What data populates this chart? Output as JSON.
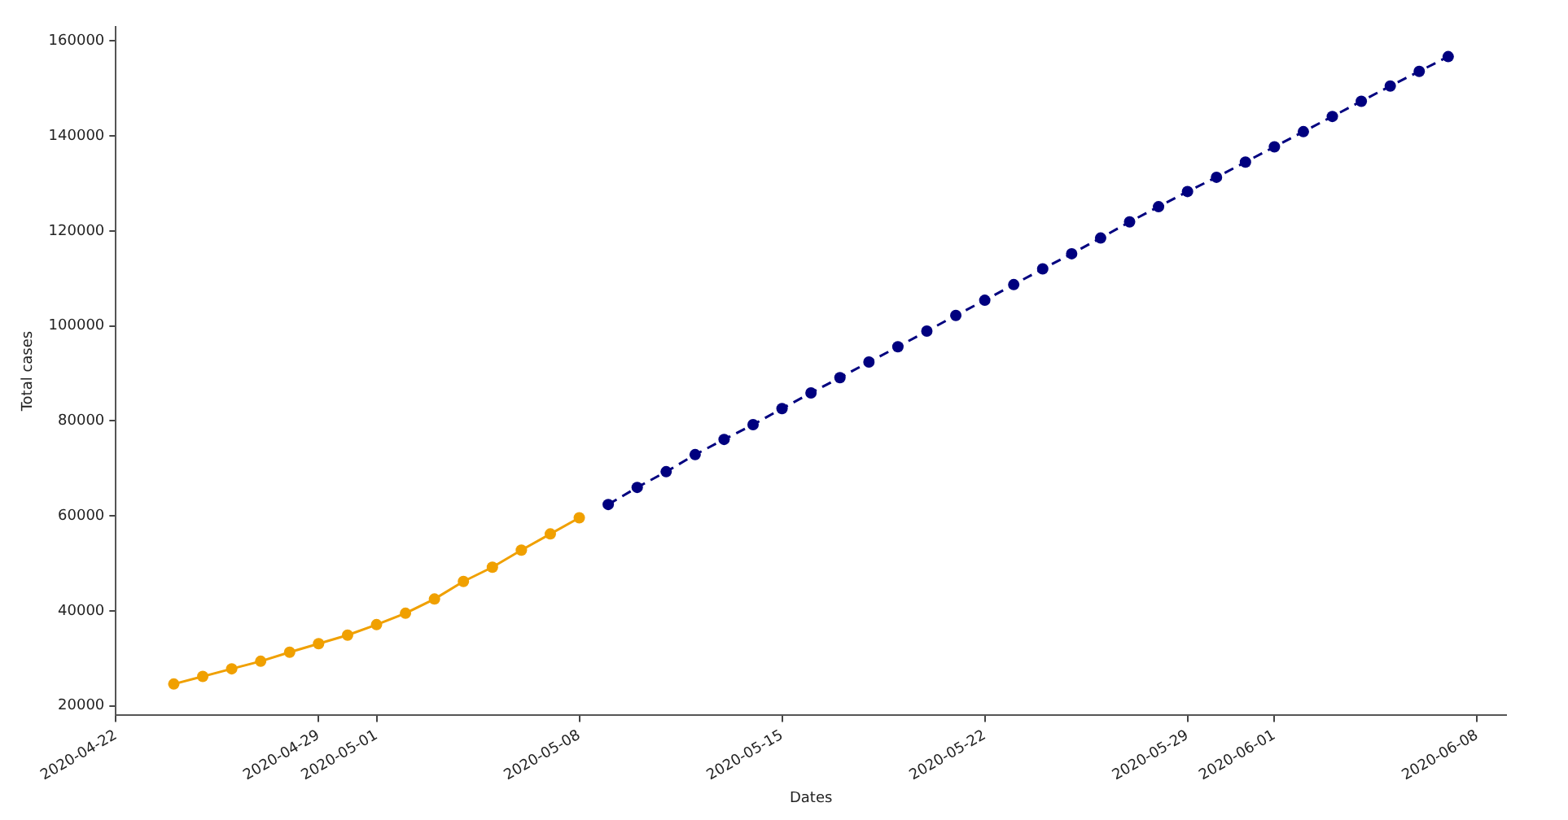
{
  "chart_data": {
    "type": "line",
    "xlabel": "Dates",
    "ylabel": "Total cases",
    "xlim": [
      "2020-04-22",
      "2020-06-09"
    ],
    "xticks": [
      "2020-04-22",
      "2020-04-29",
      "2020-05-01",
      "2020-05-08",
      "2020-05-15",
      "2020-05-22",
      "2020-05-29",
      "2020-06-01",
      "2020-06-08"
    ],
    "ylim": [
      18000,
      163000
    ],
    "yticks": [
      20000,
      40000,
      60000,
      80000,
      100000,
      120000,
      140000,
      160000
    ],
    "grid": false,
    "marker": "circle",
    "series": [
      {
        "color": "#f0a000",
        "line_style": "solid",
        "x": [
          "2020-04-24",
          "2020-04-25",
          "2020-04-26",
          "2020-04-27",
          "2020-04-28",
          "2020-04-29",
          "2020-04-30",
          "2020-05-01",
          "2020-05-02",
          "2020-05-03",
          "2020-05-04",
          "2020-05-05",
          "2020-05-06",
          "2020-05-07",
          "2020-05-08"
        ],
        "values": [
          24600,
          26200,
          27800,
          29400,
          31300,
          33100,
          34900,
          37100,
          39500,
          42500,
          46200,
          49200,
          52800,
          56200,
          59600
        ]
      },
      {
        "color": "#00007f",
        "line_style": "dashed",
        "x": [
          "2020-05-09",
          "2020-05-10",
          "2020-05-11",
          "2020-05-12",
          "2020-05-13",
          "2020-05-14",
          "2020-05-15",
          "2020-05-16",
          "2020-05-17",
          "2020-05-18",
          "2020-05-19",
          "2020-05-20",
          "2020-05-21",
          "2020-05-22",
          "2020-05-23",
          "2020-05-24",
          "2020-05-25",
          "2020-05-26",
          "2020-05-27",
          "2020-05-28",
          "2020-05-29",
          "2020-05-30",
          "2020-05-31",
          "2020-06-01",
          "2020-06-02",
          "2020-06-03",
          "2020-06-04",
          "2020-06-05",
          "2020-06-06",
          "2020-06-07"
        ],
        "values": [
          62400,
          66000,
          69300,
          72900,
          76100,
          79200,
          82600,
          85900,
          89100,
          92400,
          95600,
          98900,
          102200,
          105400,
          108700,
          112000,
          115200,
          118500,
          121900,
          125100,
          128300,
          131300,
          134500,
          137700,
          140900,
          144100,
          147300,
          150500,
          153600,
          156700
        ]
      }
    ]
  }
}
